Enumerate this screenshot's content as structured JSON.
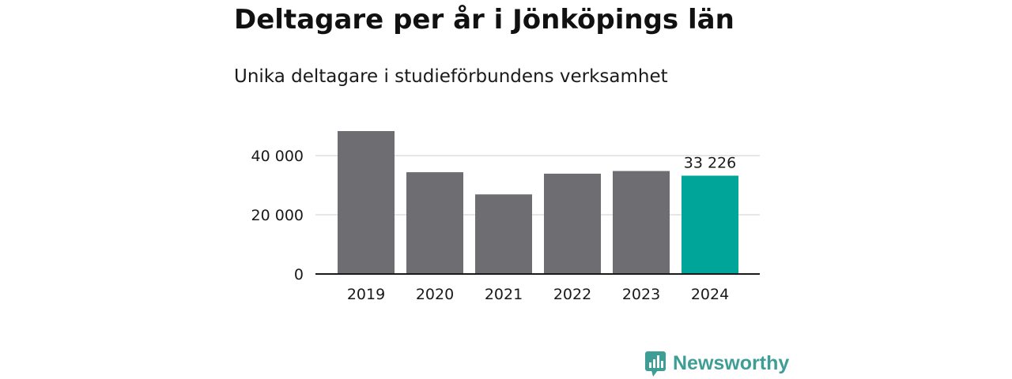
{
  "header": {
    "title": "Deltagare per år i Jönköpings län",
    "subtitle": "Unika deltagare i studieförbundens verksamhet"
  },
  "brand": {
    "name": "Newsworthy",
    "logo_icon": "bar-chart-speech-bubble-icon",
    "color": "#3e9e96"
  },
  "chart_data": {
    "type": "bar",
    "categories": [
      "2019",
      "2020",
      "2021",
      "2022",
      "2023",
      "2024"
    ],
    "values": [
      48300,
      34400,
      26900,
      33900,
      34800,
      33226
    ],
    "data_labels": [
      {
        "category": "2024",
        "text": "33 226"
      }
    ],
    "title": "Deltagare per år i Jönköpings län",
    "subtitle": "Unika deltagare i studieförbundens verksamhet",
    "ylim": [
      0,
      48300
    ],
    "yticks": [
      0,
      20000,
      40000
    ],
    "ytick_labels": [
      "0",
      "20 000",
      "40 000"
    ],
    "grid": true,
    "colors": {
      "default_bar": "#6e6d72",
      "highlight_bar": "#00a599",
      "gridline": "#dddddd",
      "axis": "#1a1a1a"
    },
    "highlight_category": "2024"
  }
}
